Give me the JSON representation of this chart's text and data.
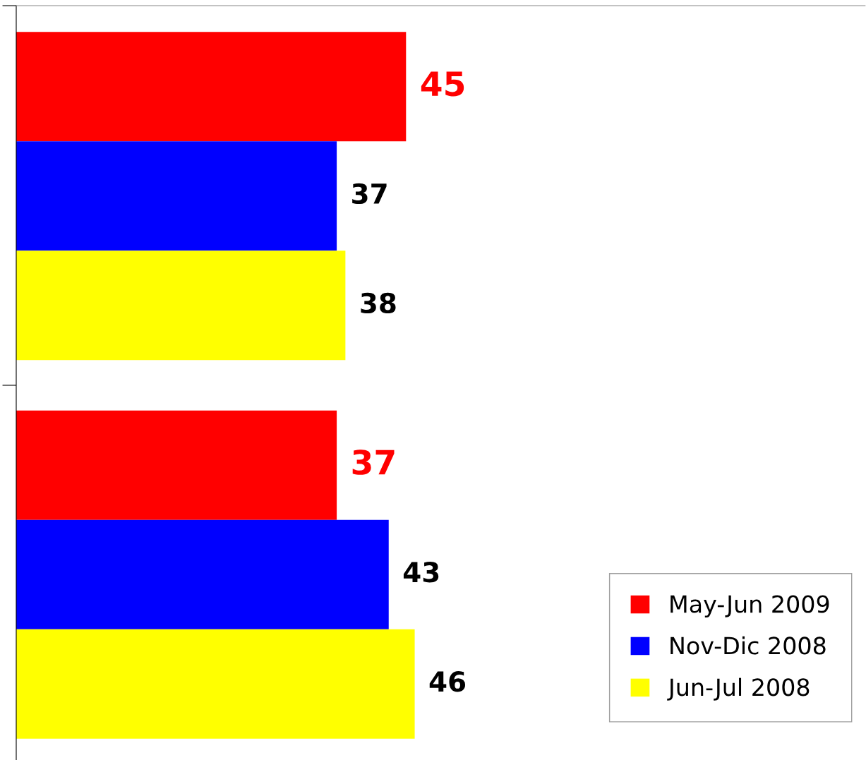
{
  "chart_data": {
    "type": "bar",
    "orientation": "horizontal",
    "categories": [
      null,
      null
    ],
    "series": [
      {
        "name": "May-Jun 2009",
        "color": "#ff0000",
        "values": [
          45,
          37
        ]
      },
      {
        "name": "Nov-Dic 2008",
        "color": "#0000ff",
        "values": [
          37,
          43
        ]
      },
      {
        "name": "Jun-Jul 2008",
        "color": "#ffff00",
        "values": [
          38,
          46
        ]
      }
    ],
    "xlim": [
      0,
      98
    ],
    "data_labels": true,
    "legend": "bottom right",
    "grid": false
  }
}
